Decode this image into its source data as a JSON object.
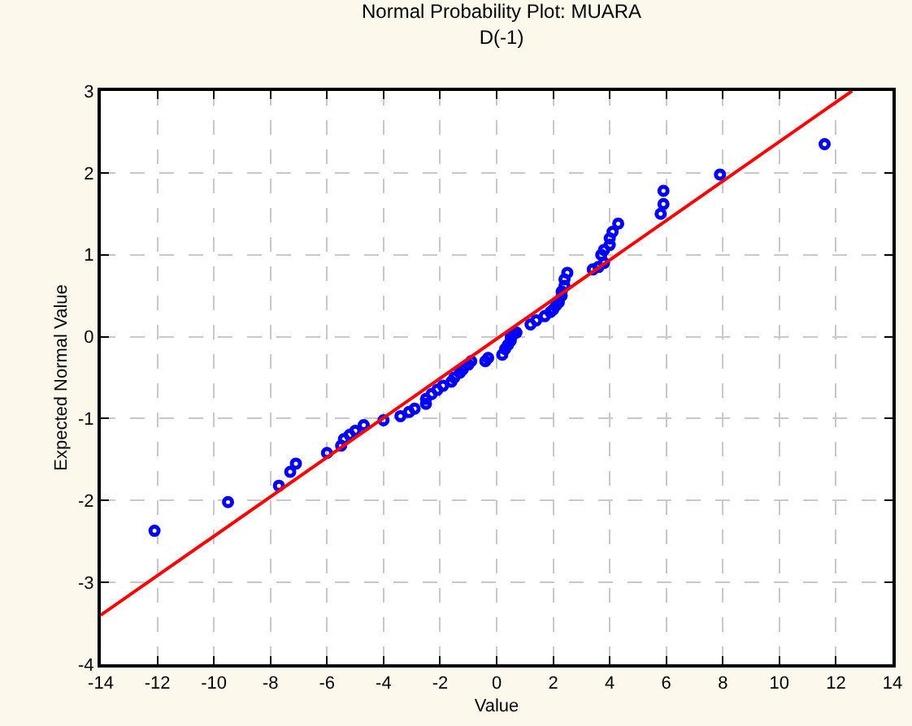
{
  "chart_data": {
    "type": "scatter",
    "title": "Normal Probability Plot: MUARA",
    "subtitle": "D(-1)",
    "xlabel": "Value",
    "ylabel": "Expected Normal Value",
    "xlim": [
      -14,
      14
    ],
    "xticks": [
      -14,
      -12,
      -10,
      -8,
      -6,
      -4,
      -2,
      0,
      2,
      4,
      6,
      8,
      10,
      12,
      14
    ],
    "ylim": [
      -4,
      3
    ],
    "yticks": [
      -4,
      -3,
      -2,
      -1,
      0,
      1,
      2,
      3
    ],
    "grid": true,
    "series": [
      {
        "color": "#0000ff",
        "marker": "circle",
        "x": [
          -12.1,
          -9.5,
          -7.7,
          -7.3,
          -7.1,
          -6.0,
          -5.5,
          -5.4,
          -5.2,
          -5.0,
          -4.7,
          -4.0,
          -3.4,
          -3.1,
          -2.9,
          -2.5,
          -2.5,
          -2.3,
          -2.1,
          -1.9,
          -1.6,
          -1.5,
          -1.3,
          -1.2,
          -1.0,
          -0.9,
          -0.4,
          -0.3,
          0.2,
          0.3,
          0.4,
          0.5,
          0.5,
          0.6,
          0.7,
          1.2,
          1.4,
          1.7,
          1.9,
          2.0,
          2.1,
          2.2,
          2.3,
          2.3,
          2.4,
          2.4,
          2.5,
          3.4,
          3.6,
          3.8,
          3.7,
          3.8,
          4.0,
          4.0,
          4.1,
          4.3,
          5.8,
          5.9,
          5.9,
          7.9,
          11.6
        ],
        "values": [
          -2.37,
          -2.02,
          -1.82,
          -1.65,
          -1.55,
          -1.42,
          -1.33,
          -1.25,
          -1.2,
          -1.15,
          -1.08,
          -1.02,
          -0.97,
          -0.92,
          -0.88,
          -0.82,
          -0.76,
          -0.7,
          -0.65,
          -0.6,
          -0.55,
          -0.5,
          -0.44,
          -0.4,
          -0.34,
          -0.3,
          -0.3,
          -0.26,
          -0.22,
          -0.15,
          -0.1,
          -0.05,
          0.0,
          0.03,
          0.05,
          0.15,
          0.2,
          0.25,
          0.3,
          0.33,
          0.38,
          0.42,
          0.5,
          0.55,
          0.62,
          0.7,
          0.78,
          0.82,
          0.85,
          0.9,
          1.0,
          1.06,
          1.12,
          1.2,
          1.28,
          1.38,
          1.5,
          1.62,
          1.78,
          1.98,
          2.35
        ]
      },
      {
        "type": "line",
        "color": "#ff0000",
        "line_style": "solid",
        "marker": "none",
        "x": [
          -14,
          12.57
        ],
        "values": [
          -3.4,
          3
        ]
      }
    ]
  }
}
